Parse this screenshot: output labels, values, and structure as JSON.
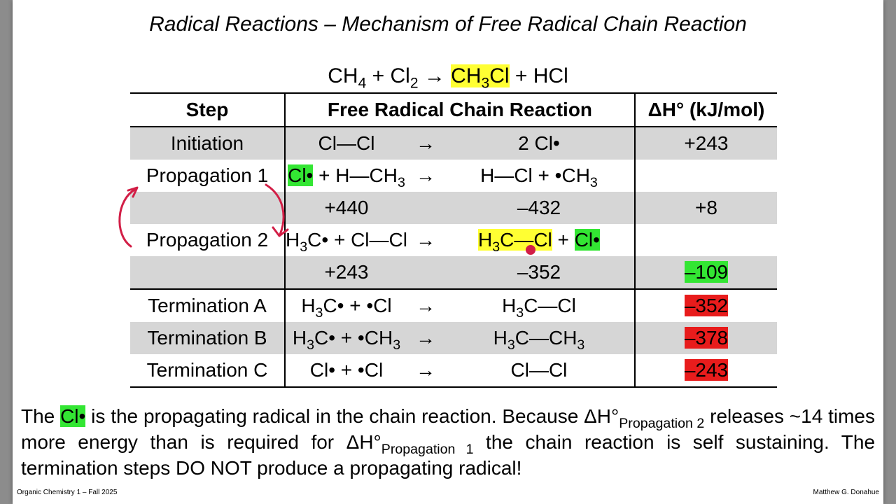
{
  "title": "Radical Reactions – Mechanism of Free Radical Chain Reaction",
  "equation": {
    "reactants": [
      "CH4",
      "Cl2"
    ],
    "products": [
      "CH3Cl",
      "HCl"
    ]
  },
  "table": {
    "headers": [
      "Step",
      "Free Radical Chain Reaction",
      "ΔH° (kJ/mol)"
    ],
    "rows": [
      {
        "step": "Initiation",
        "left": "Cl—Cl",
        "arrow": "→",
        "right": "2 Cl•",
        "dh": "+243"
      },
      {
        "step": "Propagation 1",
        "left": "Cl• + H—CH3",
        "arrow": "→",
        "right": "H—Cl + •CH3",
        "dh": ""
      },
      {
        "step": "",
        "left": "+440",
        "arrow": "",
        "right": "–432",
        "dh": "+8"
      },
      {
        "step": "Propagation 2",
        "left": "H3C• + Cl—Cl",
        "arrow": "→",
        "right": "H3C—Cl + Cl•",
        "dh": ""
      },
      {
        "step": "",
        "left": "+243",
        "arrow": "",
        "right": "–352",
        "dh": "–109"
      },
      {
        "step": "Termination A",
        "left": "H3C• + •Cl",
        "arrow": "→",
        "right": "H3C—Cl",
        "dh": "–352"
      },
      {
        "step": "Termination B",
        "left": "H3C• + •CH3",
        "arrow": "→",
        "right": "H3C—CH3",
        "dh": "–378"
      },
      {
        "step": "Termination C",
        "left": "Cl• + •Cl",
        "arrow": "→",
        "right": "Cl—Cl",
        "dh": "–243"
      }
    ]
  },
  "paragraph": {
    "p1": "The",
    "radical": "Cl•",
    "p2": "is the propagating radical in the chain reaction. Because ΔH°",
    "sub1": "Propagation 2",
    "p3": "releases ~14 times more energy than is required for ΔH°",
    "sub2": "Propagation 1",
    "p4": "the chain reaction is self sustaining. The termination steps DO NOT produce a propagating radical!"
  },
  "footer": {
    "left": "Organic Chemistry 1 – Fall 2025",
    "right": "Matthew G. Donahue"
  },
  "colors": {
    "highlight_yellow": "#ffff33",
    "highlight_green": "#33e633",
    "highlight_red": "#e81c1c",
    "row_gray": "#d6d6d6",
    "annotation_red": "#d21e46"
  }
}
